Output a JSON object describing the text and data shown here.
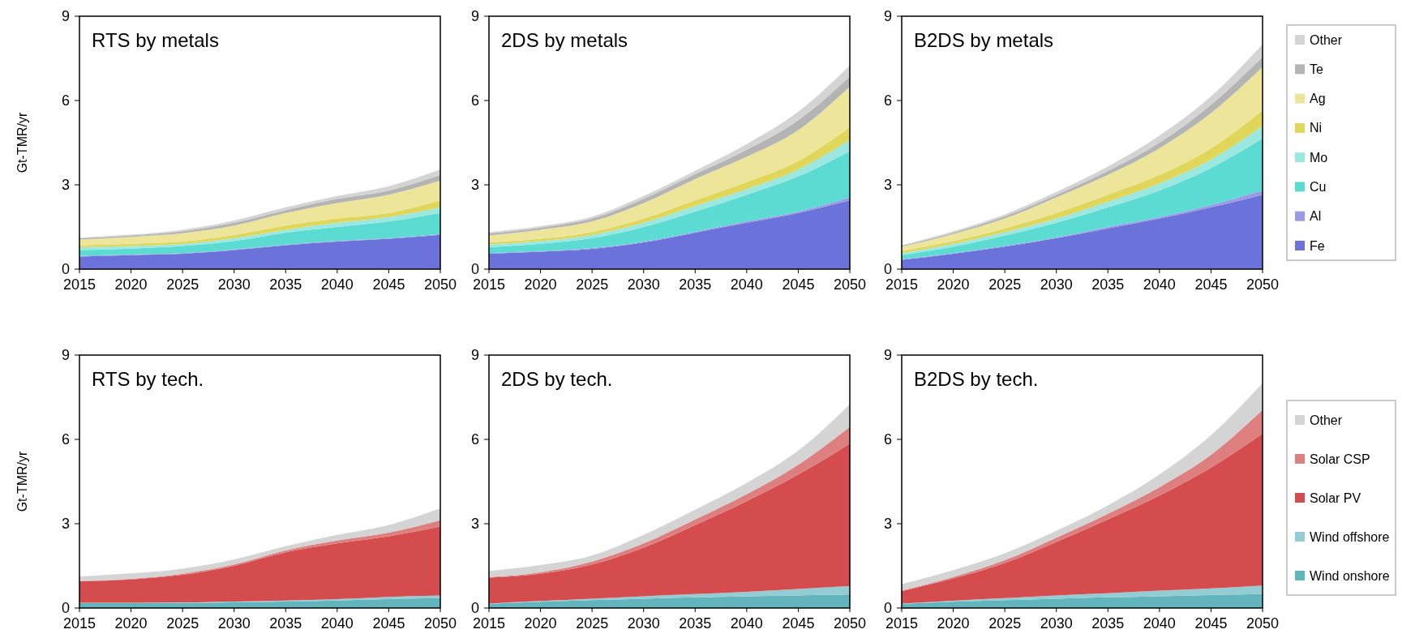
{
  "chart_data": [
    {
      "type": "area",
      "stacked": true,
      "title": "RTS by metals",
      "ylabel": "Gt-TMR/yr",
      "x": [
        2015,
        2020,
        2025,
        2030,
        2035,
        2040,
        2045,
        2050
      ],
      "xlim": [
        2015,
        2050
      ],
      "xticks": [
        2015,
        2020,
        2025,
        2030,
        2035,
        2040,
        2045,
        2050
      ],
      "ylim": [
        0,
        9
      ],
      "yticks": [
        0,
        3,
        6,
        9
      ],
      "series": [
        {
          "color": "#6b72d9",
          "values": [
            0.45,
            0.5,
            0.55,
            0.68,
            0.85,
            0.98,
            1.08,
            1.22
          ]
        },
        {
          "color": "#9a9ae6",
          "values": [
            0.02,
            0.02,
            0.02,
            0.02,
            0.02,
            0.02,
            0.02,
            0.03
          ]
        },
        {
          "color": "#5cdbd3",
          "values": [
            0.21,
            0.21,
            0.25,
            0.3,
            0.43,
            0.5,
            0.6,
            0.75
          ]
        },
        {
          "color": "#9ae8e0",
          "values": [
            0.1,
            0.09,
            0.08,
            0.1,
            0.1,
            0.15,
            0.15,
            0.2
          ]
        },
        {
          "color": "#e0d65a",
          "values": [
            0.07,
            0.08,
            0.08,
            0.12,
            0.15,
            0.15,
            0.15,
            0.25
          ]
        },
        {
          "color": "#ede69a",
          "values": [
            0.2,
            0.25,
            0.3,
            0.33,
            0.45,
            0.55,
            0.65,
            0.7
          ]
        },
        {
          "color": "#b4b4b4",
          "values": [
            0.05,
            0.05,
            0.07,
            0.1,
            0.1,
            0.15,
            0.15,
            0.2
          ]
        },
        {
          "color": "#d4d4d4",
          "values": [
            0.02,
            0.03,
            0.05,
            0.08,
            0.1,
            0.1,
            0.15,
            0.2
          ]
        }
      ]
    },
    {
      "type": "area",
      "stacked": true,
      "title": "2DS by metals",
      "x": [
        2015,
        2020,
        2025,
        2030,
        2035,
        2040,
        2045,
        2050
      ],
      "xlim": [
        2015,
        2050
      ],
      "xticks": [
        2015,
        2020,
        2025,
        2030,
        2035,
        2040,
        2045,
        2050
      ],
      "ylim": [
        0,
        9
      ],
      "yticks": [
        0,
        3,
        6,
        9
      ],
      "series": [
        {
          "color": "#6b72d9",
          "values": [
            0.55,
            0.62,
            0.72,
            0.95,
            1.3,
            1.65,
            2.0,
            2.45
          ]
        },
        {
          "color": "#9a9ae6",
          "values": [
            0.02,
            0.02,
            0.03,
            0.03,
            0.03,
            0.05,
            0.05,
            0.1
          ]
        },
        {
          "color": "#5cdbd3",
          "values": [
            0.21,
            0.26,
            0.35,
            0.52,
            0.72,
            0.95,
            1.25,
            1.65
          ]
        },
        {
          "color": "#9ae8e0",
          "values": [
            0.1,
            0.1,
            0.12,
            0.15,
            0.2,
            0.2,
            0.25,
            0.4
          ]
        },
        {
          "color": "#e0d65a",
          "values": [
            0.07,
            0.08,
            0.1,
            0.15,
            0.2,
            0.25,
            0.3,
            0.45
          ]
        },
        {
          "color": "#ede69a",
          "values": [
            0.25,
            0.32,
            0.38,
            0.55,
            0.75,
            0.9,
            1.1,
            1.45
          ]
        },
        {
          "color": "#b4b4b4",
          "values": [
            0.07,
            0.08,
            0.1,
            0.15,
            0.18,
            0.25,
            0.35,
            0.35
          ]
        },
        {
          "color": "#d4d4d4",
          "values": [
            0.05,
            0.05,
            0.07,
            0.1,
            0.12,
            0.2,
            0.3,
            0.4
          ]
        }
      ]
    },
    {
      "type": "area",
      "stacked": true,
      "title": "B2DS by metals",
      "legend": "right",
      "x": [
        2015,
        2020,
        2025,
        2030,
        2035,
        2040,
        2045,
        2050
      ],
      "xlim": [
        2015,
        2050
      ],
      "xticks": [
        2015,
        2020,
        2025,
        2030,
        2035,
        2040,
        2045,
        2050
      ],
      "ylim": [
        0,
        9
      ],
      "yticks": [
        0,
        3,
        6,
        9
      ],
      "series": [
        {
          "name": "Fe",
          "color": "#6b72d9",
          "values": [
            0.33,
            0.55,
            0.8,
            1.1,
            1.45,
            1.8,
            2.2,
            2.65
          ]
        },
        {
          "name": "Al",
          "color": "#9a9ae6",
          "values": [
            0.02,
            0.02,
            0.03,
            0.03,
            0.05,
            0.05,
            0.08,
            0.15
          ]
        },
        {
          "name": "Cu",
          "color": "#5cdbd3",
          "values": [
            0.15,
            0.23,
            0.37,
            0.52,
            0.7,
            0.95,
            1.32,
            1.85
          ]
        },
        {
          "name": "Mo",
          "color": "#9ae8e0",
          "values": [
            0.07,
            0.1,
            0.12,
            0.15,
            0.2,
            0.25,
            0.3,
            0.45
          ]
        },
        {
          "name": "Ni",
          "color": "#e0d65a",
          "values": [
            0.08,
            0.1,
            0.13,
            0.2,
            0.25,
            0.3,
            0.4,
            0.55
          ]
        },
        {
          "name": "Ag",
          "color": "#ede69a",
          "values": [
            0.15,
            0.25,
            0.35,
            0.55,
            0.7,
            0.95,
            1.25,
            1.55
          ]
        },
        {
          "name": "Te",
          "color": "#b4b4b4",
          "values": [
            0.03,
            0.05,
            0.08,
            0.1,
            0.15,
            0.2,
            0.3,
            0.35
          ]
        },
        {
          "name": "Other",
          "color": "#d4d4d4",
          "values": [
            0.02,
            0.05,
            0.07,
            0.1,
            0.15,
            0.25,
            0.3,
            0.45
          ]
        }
      ]
    },
    {
      "type": "area",
      "stacked": true,
      "title": "RTS by tech.",
      "ylabel": "Gt-TMR/yr",
      "x": [
        2015,
        2020,
        2025,
        2030,
        2035,
        2040,
        2045,
        2050
      ],
      "xlim": [
        2015,
        2050
      ],
      "xticks": [
        2015,
        2020,
        2025,
        2030,
        2035,
        2040,
        2045,
        2050
      ],
      "ylim": [
        0,
        9
      ],
      "yticks": [
        0,
        3,
        6,
        9
      ],
      "series": [
        {
          "color": "#63b5bd",
          "values": [
            0.18,
            0.18,
            0.18,
            0.2,
            0.23,
            0.27,
            0.32,
            0.35
          ]
        },
        {
          "color": "#93cdd3",
          "values": [
            0.01,
            0.01,
            0.02,
            0.03,
            0.04,
            0.05,
            0.08,
            0.1
          ]
        },
        {
          "color": "#d44c4e",
          "values": [
            0.76,
            0.83,
            0.98,
            1.27,
            1.71,
            1.98,
            2.15,
            2.45
          ]
        },
        {
          "color": "#de7f7f",
          "values": [
            0.01,
            0.02,
            0.04,
            0.05,
            0.07,
            0.1,
            0.13,
            0.22
          ]
        },
        {
          "color": "#d4d4d4",
          "values": [
            0.16,
            0.19,
            0.18,
            0.18,
            0.15,
            0.2,
            0.27,
            0.43
          ]
        }
      ]
    },
    {
      "type": "area",
      "stacked": true,
      "title": "2DS by tech.",
      "x": [
        2015,
        2020,
        2025,
        2030,
        2035,
        2040,
        2045,
        2050
      ],
      "xlim": [
        2015,
        2050
      ],
      "xticks": [
        2015,
        2020,
        2025,
        2030,
        2035,
        2040,
        2045,
        2050
      ],
      "ylim": [
        0,
        9
      ],
      "yticks": [
        0,
        3,
        6,
        9
      ],
      "series": [
        {
          "color": "#63b5bd",
          "values": [
            0.15,
            0.22,
            0.28,
            0.33,
            0.38,
            0.42,
            0.45,
            0.48
          ]
        },
        {
          "color": "#93cdd3",
          "values": [
            0.01,
            0.03,
            0.05,
            0.09,
            0.12,
            0.16,
            0.23,
            0.3
          ]
        },
        {
          "color": "#d44c4e",
          "values": [
            0.92,
            0.97,
            1.22,
            1.73,
            2.45,
            3.22,
            4.07,
            5.07
          ]
        },
        {
          "color": "#de7f7f",
          "values": [
            0.02,
            0.05,
            0.1,
            0.15,
            0.2,
            0.25,
            0.35,
            0.6
          ]
        },
        {
          "color": "#d4d4d4",
          "values": [
            0.22,
            0.26,
            0.22,
            0.3,
            0.35,
            0.4,
            0.5,
            0.8
          ]
        }
      ]
    },
    {
      "type": "area",
      "stacked": true,
      "title": "B2DS by tech.",
      "legend": "right",
      "x": [
        2015,
        2020,
        2025,
        2030,
        2035,
        2040,
        2045,
        2050
      ],
      "xlim": [
        2015,
        2050
      ],
      "xticks": [
        2015,
        2020,
        2025,
        2030,
        2035,
        2040,
        2045,
        2050
      ],
      "ylim": [
        0,
        9
      ],
      "yticks": [
        0,
        3,
        6,
        9
      ],
      "series": [
        {
          "name": "Wind onshore",
          "color": "#63b5bd",
          "values": [
            0.15,
            0.22,
            0.28,
            0.33,
            0.38,
            0.42,
            0.46,
            0.5
          ]
        },
        {
          "name": "Wind offshore",
          "color": "#93cdd3",
          "values": [
            0.01,
            0.04,
            0.07,
            0.12,
            0.15,
            0.2,
            0.24,
            0.3
          ]
        },
        {
          "name": "Solar PV",
          "color": "#d44c4e",
          "values": [
            0.44,
            0.79,
            1.25,
            1.9,
            2.62,
            3.38,
            4.3,
            5.4
          ]
        },
        {
          "name": "Solar CSP",
          "color": "#de7f7f",
          "values": [
            0.02,
            0.05,
            0.1,
            0.15,
            0.2,
            0.3,
            0.45,
            0.85
          ]
        },
        {
          "name": "Other",
          "color": "#d4d4d4",
          "values": [
            0.23,
            0.25,
            0.25,
            0.25,
            0.3,
            0.45,
            0.7,
            0.95
          ]
        }
      ]
    }
  ]
}
